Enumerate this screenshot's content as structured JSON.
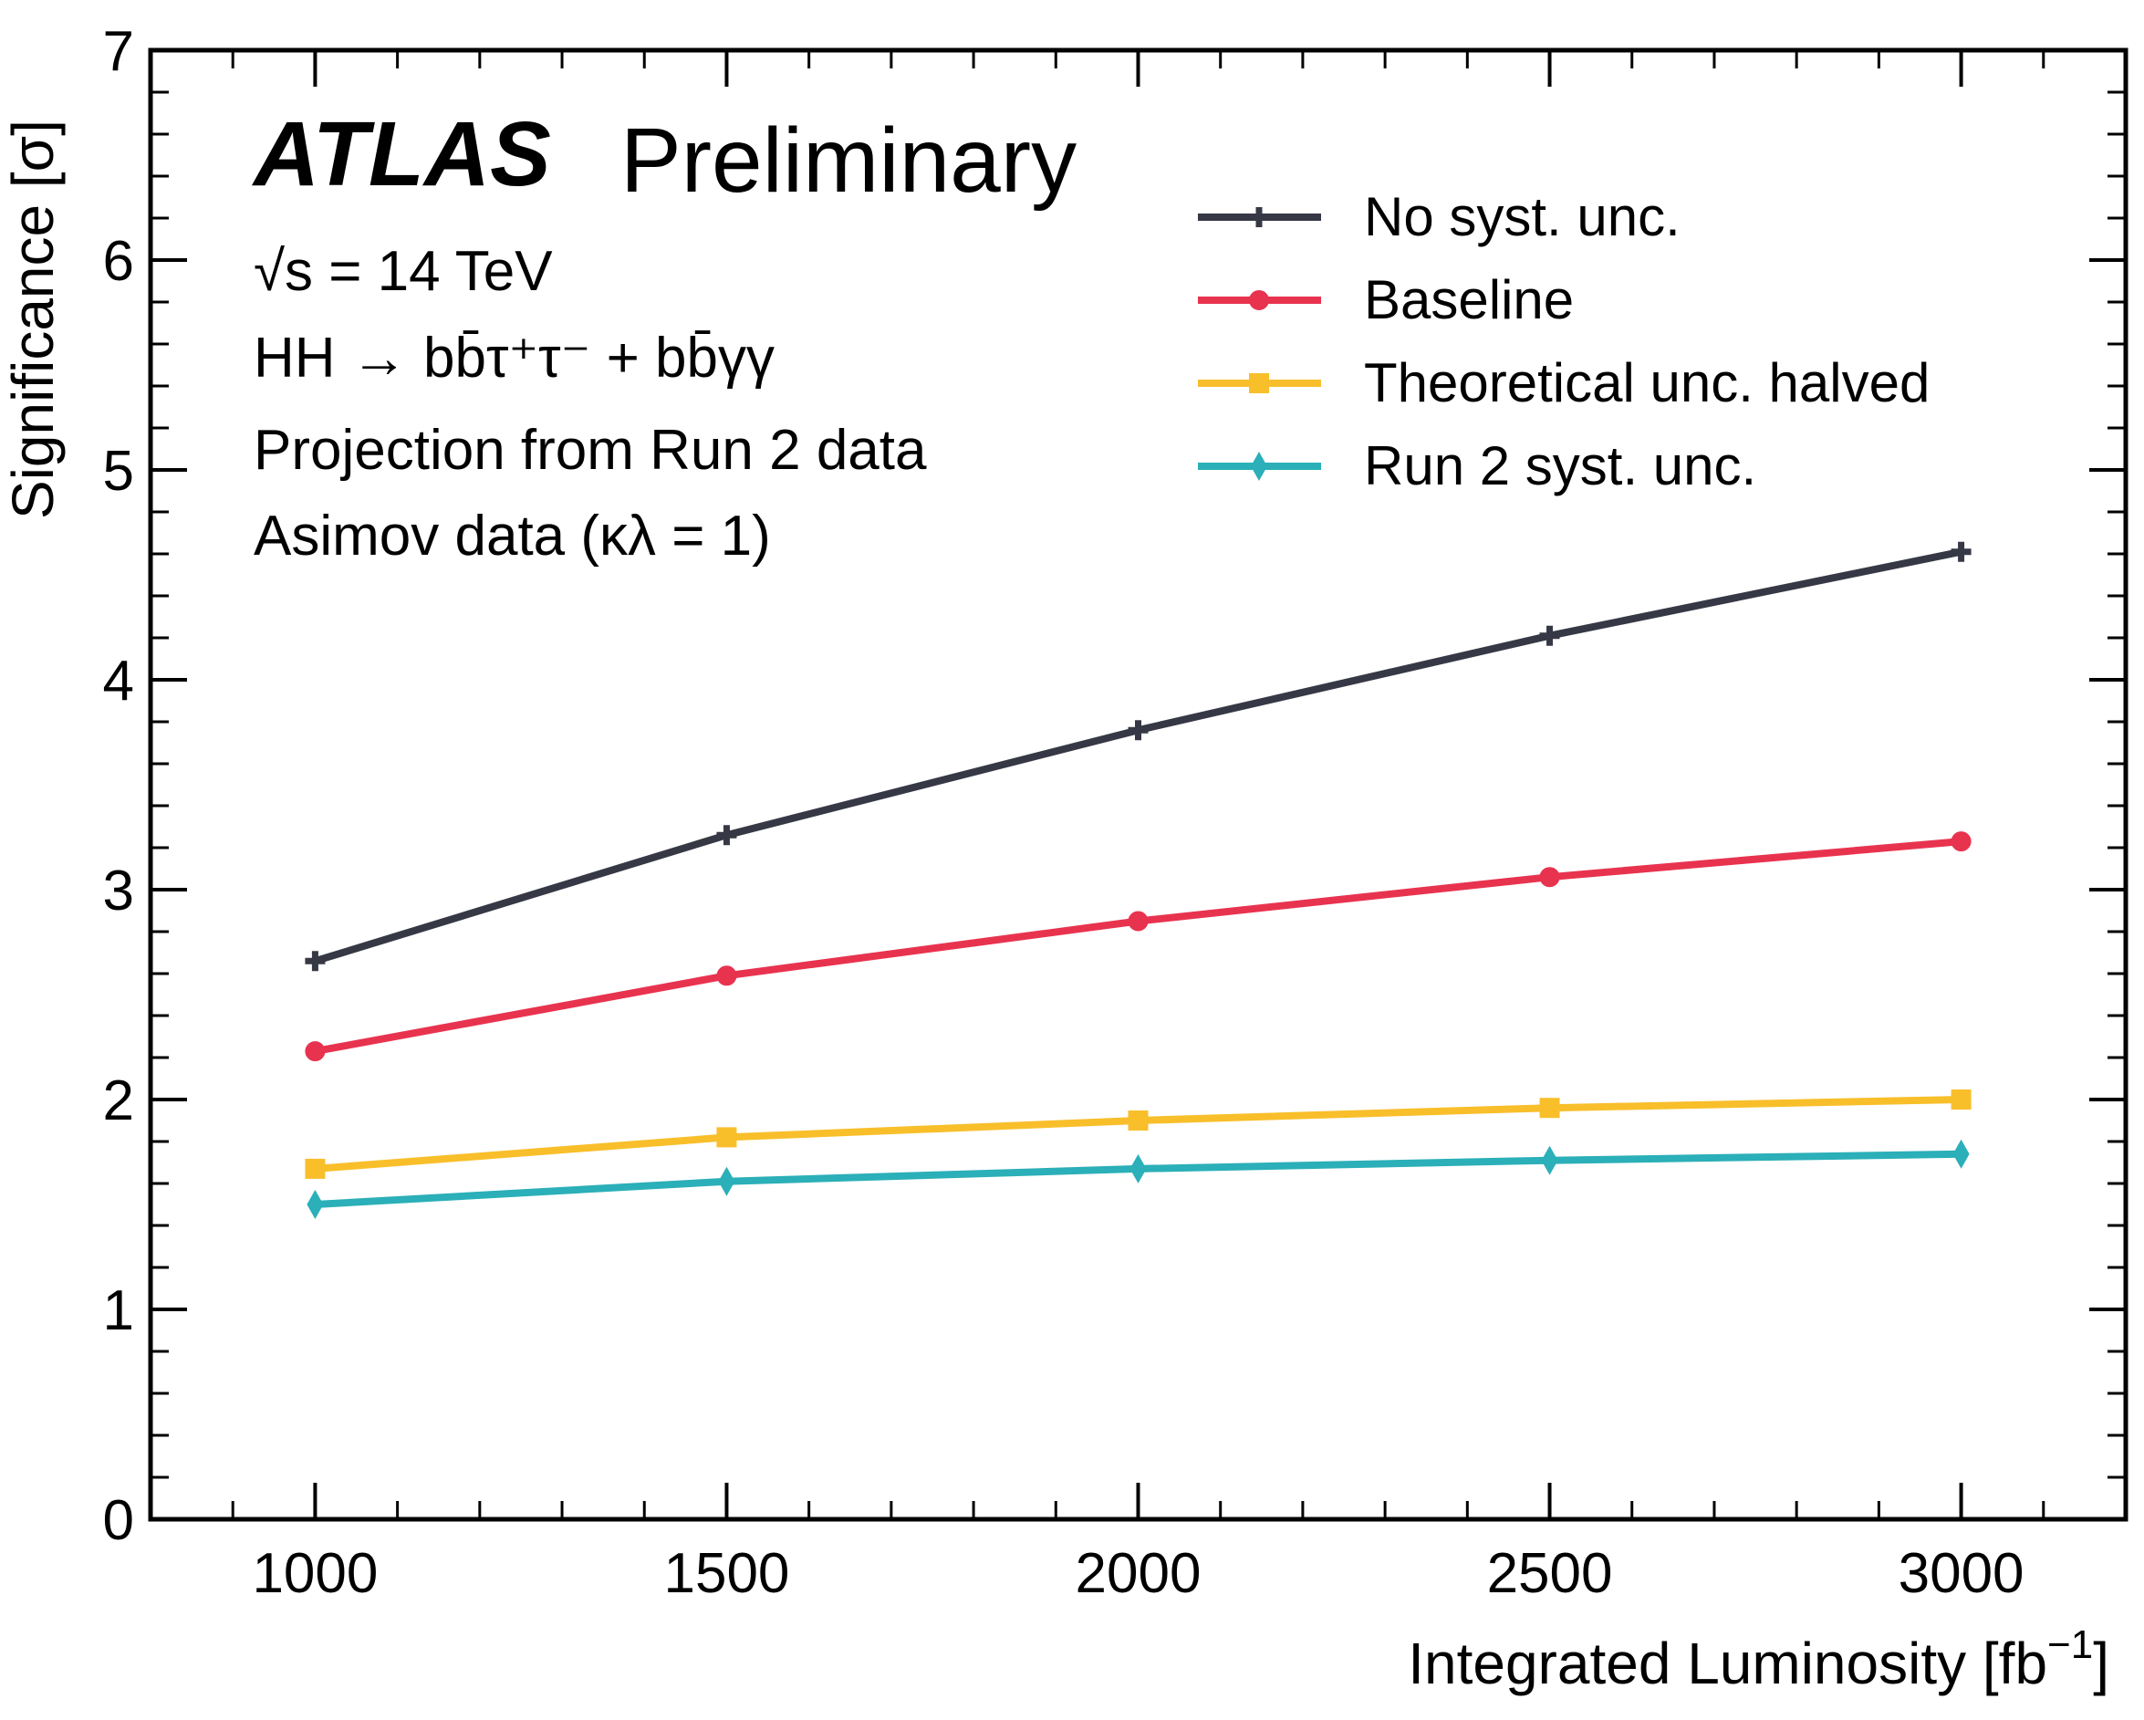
{
  "chart_data": {
    "type": "line",
    "xlabel": "Integrated Luminosity [fb",
    "xlabel_sup": "−1",
    "xlabel_tail": "]",
    "ylabel": "Significance [σ]",
    "xlim": [
      800,
      3200
    ],
    "ylim": [
      0,
      7
    ],
    "x_ticks": [
      1000,
      1500,
      2000,
      2500,
      3000
    ],
    "y_ticks": [
      0,
      1,
      2,
      3,
      4,
      5,
      6,
      7
    ],
    "x_tick_labels": [
      "1000",
      "1500",
      "2000",
      "2500",
      "3000"
    ],
    "y_tick_labels": [
      "0",
      "1",
      "2",
      "3",
      "4",
      "5",
      "6",
      "7"
    ],
    "grid": false,
    "legend_position": "top-right",
    "x": [
      1000,
      1500,
      2000,
      2500,
      3000
    ],
    "series": [
      {
        "name": "No syst. unc.",
        "color": "#363845",
        "marker": "plus",
        "values": [
          2.66,
          3.26,
          3.76,
          4.21,
          4.61
        ]
      },
      {
        "name": "Baseline",
        "color": "#e8334f",
        "marker": "circle",
        "values": [
          2.23,
          2.59,
          2.85,
          3.06,
          3.23
        ]
      },
      {
        "name": "Theoretical unc. halved",
        "color": "#f8bf2b",
        "marker": "square",
        "values": [
          1.67,
          1.82,
          1.9,
          1.96,
          2.0
        ]
      },
      {
        "name": "Run 2 syst. unc.",
        "color": "#2bafb8",
        "marker": "diamond",
        "values": [
          1.5,
          1.61,
          1.67,
          1.71,
          1.74
        ]
      }
    ],
    "annotations": {
      "experiment": "ATLAS",
      "status": "Preliminary",
      "energy": "√s = 14 TeV",
      "process": "HH → bb̄τ⁺τ⁻ + bb̄γγ",
      "projection": "Projection from Run 2 data",
      "asimov": "Asimov data (κλ = 1)"
    }
  }
}
